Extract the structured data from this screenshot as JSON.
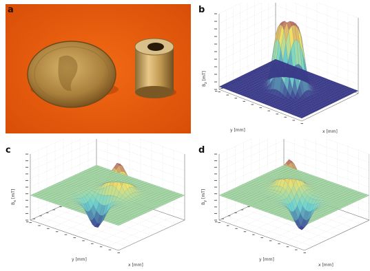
{
  "panels": {
    "a": {
      "label": "a"
    },
    "b": {
      "label": "b",
      "z_axis_label": "B",
      "z_axis_subscript": "z",
      "z_axis_unit": "[mT]",
      "y_axis_label": "y [mm]",
      "x_axis_label": "x [mm]"
    },
    "c": {
      "label": "c",
      "z_axis_label": "B",
      "z_axis_subscript": "x",
      "z_axis_unit": "[mT]",
      "y_axis_label": "y [mm]",
      "x_axis_label": "x [mm]"
    },
    "d": {
      "label": "d",
      "z_axis_label": "B",
      "z_axis_subscript": "y",
      "z_axis_unit": "[mT]",
      "y_axis_label": "y [mm]",
      "x_axis_label": "x [mm]"
    }
  },
  "colors": {
    "photo_background": "#e95a0c",
    "coin": "#b08a45",
    "magnet": "#c9a35a",
    "surface_low": "#3a3a8c",
    "surface_mid": "#6fd6d0",
    "surface_high": "#f0e36a",
    "surface_peak": "#b05a6a"
  }
}
